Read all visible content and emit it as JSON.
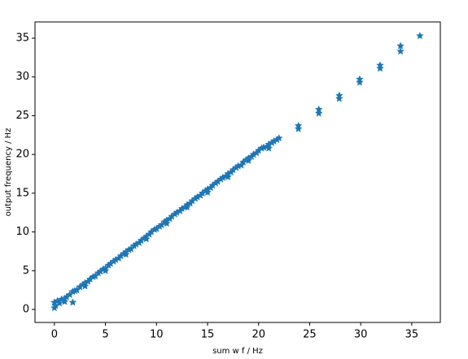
{
  "chart_data": {
    "type": "scatter",
    "xlabel": "sum w f / Hz",
    "ylabel": "output frequency / Hz",
    "color": "#1f77b4",
    "marker": "star",
    "x": [
      0,
      0,
      0.1,
      0.3,
      0.5,
      0.7,
      1,
      1.2,
      1.5,
      1.8,
      2,
      2.2,
      2.5,
      2.8,
      3,
      3.3,
      3.5,
      3.8,
      4,
      4.3,
      4.5,
      4.8,
      5,
      5.3,
      5.5,
      5.8,
      6,
      6.3,
      6.5,
      6.8,
      7,
      7.3,
      7.5,
      7.8,
      8,
      8.3,
      8.5,
      8.8,
      9,
      9.3,
      9.5,
      9.8,
      10,
      10.3,
      10.5,
      10.8,
      11,
      11.3,
      11.5,
      11.8,
      12,
      12.3,
      12.5,
      12.8,
      13,
      13.3,
      13.5,
      13.8,
      14,
      14.3,
      14.5,
      14.8,
      15,
      15.3,
      15.5,
      15.8,
      16,
      16.3,
      16.5,
      16.8,
      17,
      17.3,
      17.5,
      17.8,
      18,
      18.3,
      18.5,
      18.8,
      19,
      19.3,
      19.5,
      19.8,
      20,
      20.3,
      20.5,
      20.8,
      21,
      21.3,
      21.5,
      21.8,
      22,
      1.8,
      1,
      3,
      5,
      7,
      9,
      11,
      13,
      15,
      17,
      19,
      21,
      23.9,
      23.9,
      25.9,
      25.9,
      27.9,
      27.9,
      29.9,
      29.9,
      31.9,
      31.9,
      33.9,
      33.9,
      35.8
    ],
    "values": [
      0.2,
      0.9,
      0.5,
      1.1,
      0.8,
      1.3,
      1.4,
      1.6,
      1.9,
      2.3,
      2.4,
      2.5,
      2.9,
      3.2,
      3.4,
      3.6,
      3.9,
      4.2,
      4.3,
      4.7,
      4.9,
      5.2,
      5.3,
      5.7,
      5.9,
      6.2,
      6.4,
      6.6,
      6.9,
      7.2,
      7.4,
      7.7,
      7.8,
      8.2,
      8.4,
      8.6,
      8.9,
      9.2,
      9.4,
      9.7,
      10.0,
      10.3,
      10.4,
      10.7,
      10.9,
      11.3,
      11.5,
      11.7,
      12.0,
      12.3,
      12.5,
      12.7,
      13.0,
      13.2,
      13.5,
      13.7,
      14.0,
      14.3,
      14.5,
      14.7,
      15.0,
      15.3,
      15.5,
      15.7,
      16.0,
      16.3,
      16.5,
      16.8,
      17.0,
      17.2,
      17.5,
      17.7,
      18.0,
      18.3,
      18.5,
      18.6,
      19.0,
      19.3,
      19.5,
      19.7,
      20.0,
      20.2,
      20.5,
      20.8,
      20.9,
      21.0,
      21.3,
      21.5,
      21.7,
      21.9,
      22.1,
      0.9,
      1.0,
      3.0,
      5.0,
      7.1,
      9.1,
      11.1,
      13.2,
      15.1,
      17.1,
      19.2,
      20.8,
      23.3,
      23.7,
      25.3,
      25.8,
      27.2,
      27.6,
      29.3,
      29.7,
      31.1,
      31.5,
      33.3,
      34.0,
      35.3
    ],
    "xlim": [
      -1.9,
      37.8
    ],
    "ylim": [
      -1.68,
      37.1
    ],
    "xticks": [
      0,
      5,
      10,
      15,
      20,
      25,
      30,
      35
    ],
    "yticks": [
      0,
      5,
      10,
      15,
      20,
      25,
      30,
      35
    ]
  }
}
